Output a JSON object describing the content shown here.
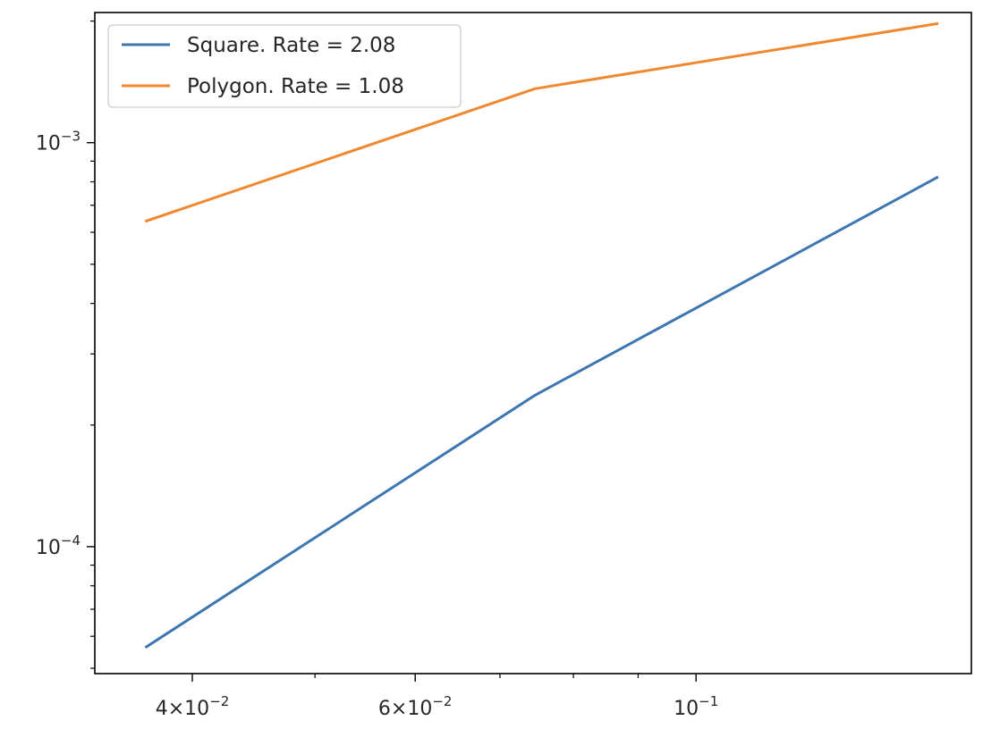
{
  "chart_data": {
    "type": "line",
    "xscale": "log",
    "yscale": "log",
    "xlim": [
      0.0335,
      0.165
    ],
    "ylim": [
      4.85e-05,
      0.0021
    ],
    "grid": false,
    "legend_position": "upper-left",
    "x_ticks": [
      {
        "value": 0.04,
        "base": "4×10",
        "exp": "−2"
      },
      {
        "value": 0.06,
        "base": "6×10",
        "exp": "−2"
      },
      {
        "value": 0.1,
        "base": "10",
        "exp": "−1"
      }
    ],
    "y_ticks": [
      {
        "value": 0.001,
        "base": "10",
        "exp": "−3"
      },
      {
        "value": 0.0001,
        "base": "10",
        "exp": "−4"
      }
    ],
    "series": [
      {
        "name": "Square. Rate = 2.08",
        "color": "#3d76b0",
        "x": [
          0.0368,
          0.0746,
          0.155
        ],
        "y": [
          5.65e-05,
          0.000237,
          0.00082
        ]
      },
      {
        "name": "Polygon. Rate = 1.08",
        "color": "#f0882f",
        "x": [
          0.0368,
          0.0746,
          0.155
        ],
        "y": [
          0.00064,
          0.00136,
          0.00197
        ]
      }
    ]
  }
}
